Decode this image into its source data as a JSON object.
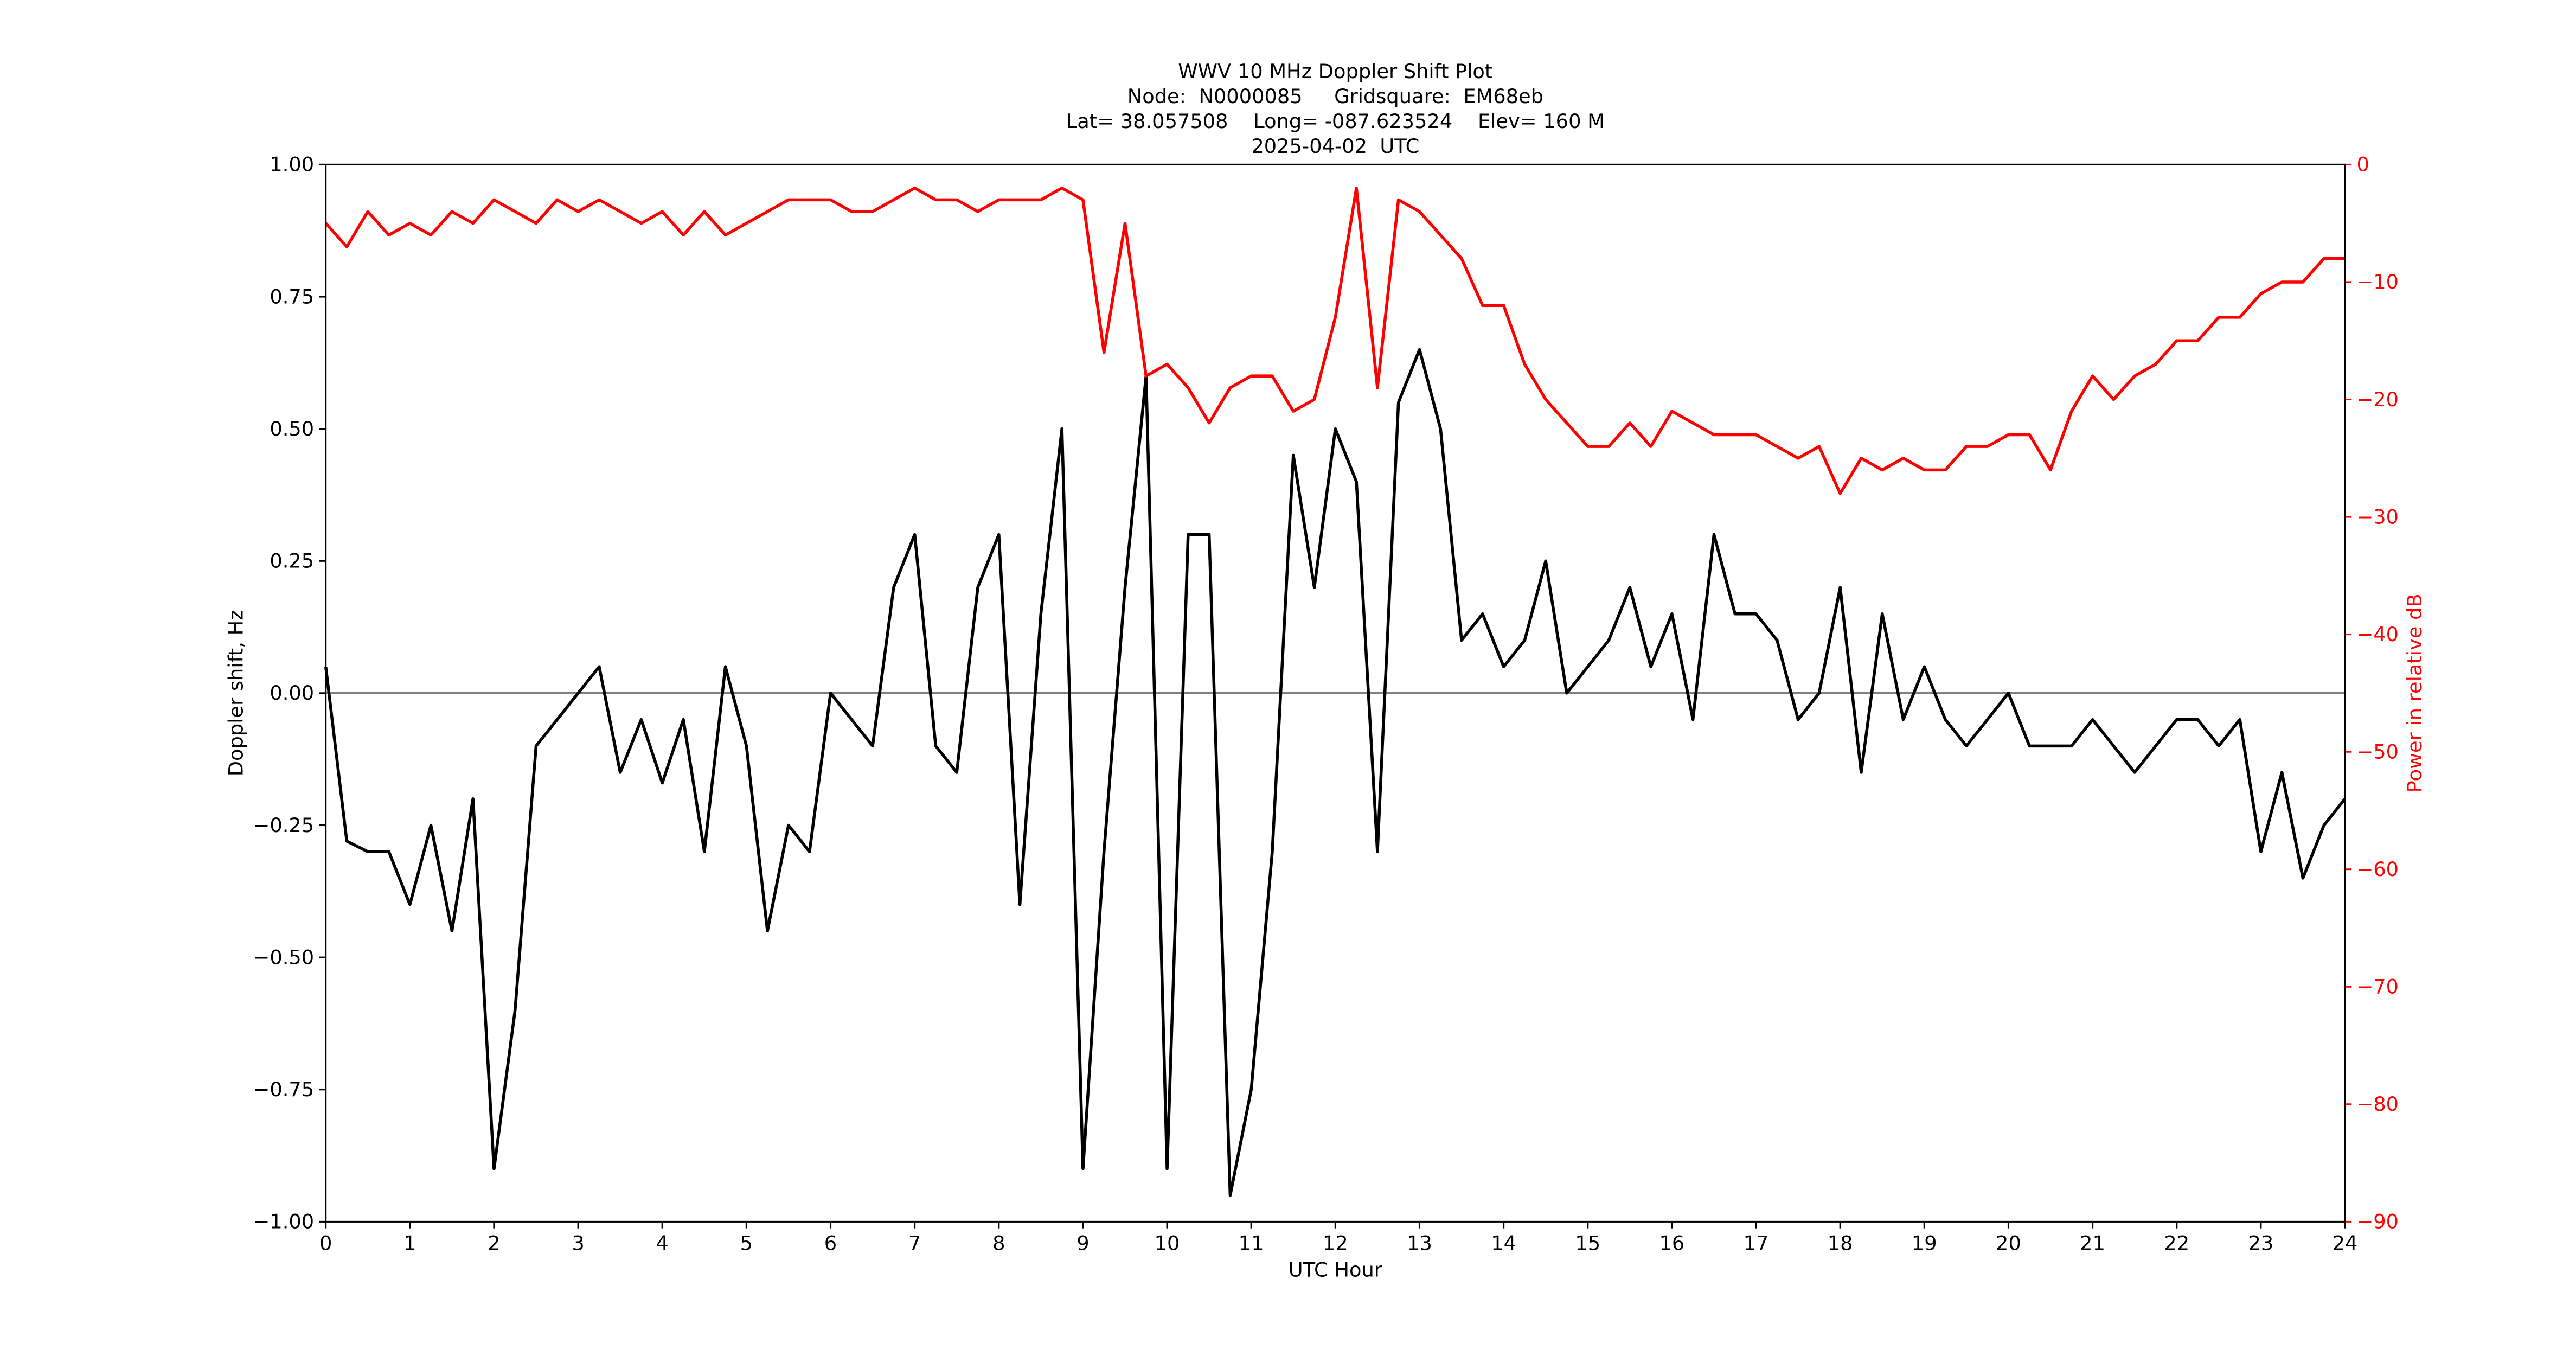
{
  "chart_data": {
    "type": "line",
    "title": [
      "WWV 10 MHz Doppler Shift Plot",
      "Node:  N0000085     Gridsquare:  EM68eb",
      "Lat= 38.057508    Long= -087.623524    Elev= 160 M",
      "2025-04-02  UTC"
    ],
    "x_label": "UTC Hour",
    "y_label": "Doppler shift, Hz",
    "y2_label": "Power in relative dB",
    "x": [
      0,
      0.25,
      0.5,
      0.75,
      1,
      1.25,
      1.5,
      1.75,
      2,
      2.25,
      2.5,
      2.75,
      3,
      3.25,
      3.5,
      3.75,
      4,
      4.25,
      4.5,
      4.75,
      5,
      5.25,
      5.5,
      5.75,
      6,
      6.25,
      6.5,
      6.75,
      7,
      7.25,
      7.5,
      7.75,
      8,
      8.25,
      8.5,
      8.75,
      9,
      9.25,
      9.5,
      9.75,
      10,
      10.25,
      10.5,
      10.75,
      11,
      11.25,
      11.5,
      11.75,
      12,
      12.25,
      12.5,
      12.75,
      13,
      13.25,
      13.5,
      13.75,
      14,
      14.25,
      14.5,
      14.75,
      15,
      15.25,
      15.5,
      15.75,
      16,
      16.25,
      16.5,
      16.75,
      17,
      17.25,
      17.5,
      17.75,
      18,
      18.25,
      18.5,
      18.75,
      19,
      19.25,
      19.5,
      19.75,
      20,
      20.25,
      20.5,
      20.75,
      21,
      21.25,
      21.5,
      21.75,
      22,
      22.25,
      22.5,
      22.75,
      23,
      23.25,
      23.5,
      23.75,
      24
    ],
    "series": [
      {
        "name": "Doppler shift",
        "color": "#000000",
        "axis": "y",
        "values": [
          0.05,
          -0.28,
          -0.3,
          -0.3,
          -0.4,
          -0.25,
          -0.45,
          -0.2,
          -0.9,
          -0.6,
          -0.1,
          -0.05,
          0.0,
          0.05,
          -0.15,
          -0.05,
          -0.17,
          -0.05,
          -0.3,
          0.05,
          -0.1,
          -0.45,
          -0.25,
          -0.3,
          0.0,
          -0.05,
          -0.1,
          0.2,
          0.3,
          -0.1,
          -0.15,
          0.2,
          0.3,
          -0.4,
          0.15,
          0.5,
          -0.9,
          -0.3,
          0.2,
          0.6,
          -0.9,
          0.3,
          0.3,
          -0.95,
          -0.75,
          -0.3,
          0.45,
          0.2,
          0.5,
          0.4,
          -0.3,
          0.55,
          0.65,
          0.5,
          0.1,
          0.15,
          0.05,
          0.1,
          0.25,
          0.0,
          0.05,
          0.1,
          0.2,
          0.05,
          0.15,
          -0.05,
          0.3,
          0.15,
          0.15,
          0.1,
          -0.05,
          0.0,
          0.2,
          -0.15,
          0.15,
          -0.05,
          0.05,
          -0.05,
          -0.1,
          -0.05,
          0.0,
          -0.1,
          -0.1,
          -0.1,
          -0.05,
          -0.1,
          -0.15,
          -0.1,
          -0.05,
          -0.05,
          -0.1,
          -0.05,
          -0.3,
          -0.15,
          -0.35,
          -0.25,
          -0.2
        ]
      },
      {
        "name": "Power",
        "color": "#ff0000",
        "axis": "y2",
        "values": [
          -5,
          -7,
          -4,
          -6,
          -5,
          -6,
          -4,
          -5,
          -3,
          -4,
          -5,
          -3,
          -4,
          -3,
          -4,
          -5,
          -4,
          -6,
          -4,
          -6,
          -5,
          -4,
          -3,
          -3,
          -3,
          -4,
          -4,
          -3,
          -2,
          -3,
          -3,
          -4,
          -3,
          -3,
          -3,
          -2,
          -3,
          -16,
          -5,
          -18,
          -17,
          -19,
          -22,
          -19,
          -18,
          -18,
          -21,
          -20,
          -13,
          -2,
          -19,
          -3,
          -4,
          -6,
          -8,
          -12,
          -12,
          -17,
          -20,
          -22,
          -24,
          -24,
          -22,
          -24,
          -21,
          -22,
          -23,
          -23,
          -23,
          -24,
          -25,
          -24,
          -28,
          -25,
          -26,
          -25,
          -26,
          -26,
          -24,
          -24,
          -23,
          -23,
          -26,
          -21,
          -18,
          -20,
          -18,
          -17,
          -15,
          -15,
          -13,
          -13,
          -11,
          -10,
          -10,
          -8,
          -8
        ]
      }
    ],
    "reference_line": 0,
    "xlim": [
      0,
      24
    ],
    "xticks": [
      0,
      1,
      2,
      3,
      4,
      5,
      6,
      7,
      8,
      9,
      10,
      11,
      12,
      13,
      14,
      15,
      16,
      17,
      18,
      19,
      20,
      21,
      22,
      23,
      24
    ],
    "ylim": [
      -1,
      1
    ],
    "yticks": [
      {
        "value": -1,
        "label": "−1.00"
      },
      {
        "value": -0.75,
        "label": "−0.75"
      },
      {
        "value": -0.5,
        "label": "−0.50"
      },
      {
        "value": -0.25,
        "label": "−0.25"
      },
      {
        "value": 0,
        "label": "0.00"
      },
      {
        "value": 0.25,
        "label": "0.25"
      },
      {
        "value": 0.5,
        "label": "0.50"
      },
      {
        "value": 0.75,
        "label": "0.75"
      },
      {
        "value": 1,
        "label": "1.00"
      }
    ],
    "y2lim": [
      -90,
      0
    ],
    "y2ticks": [
      {
        "value": -90,
        "label": "−90"
      },
      {
        "value": -80,
        "label": "−80"
      },
      {
        "value": -70,
        "label": "−70"
      },
      {
        "value": -60,
        "label": "−60"
      },
      {
        "value": -50,
        "label": "−50"
      },
      {
        "value": -40,
        "label": "−40"
      },
      {
        "value": -30,
        "label": "−30"
      },
      {
        "value": -20,
        "label": "−20"
      },
      {
        "value": -10,
        "label": "−10"
      },
      0
    ],
    "y2_color": "#ff0000"
  }
}
